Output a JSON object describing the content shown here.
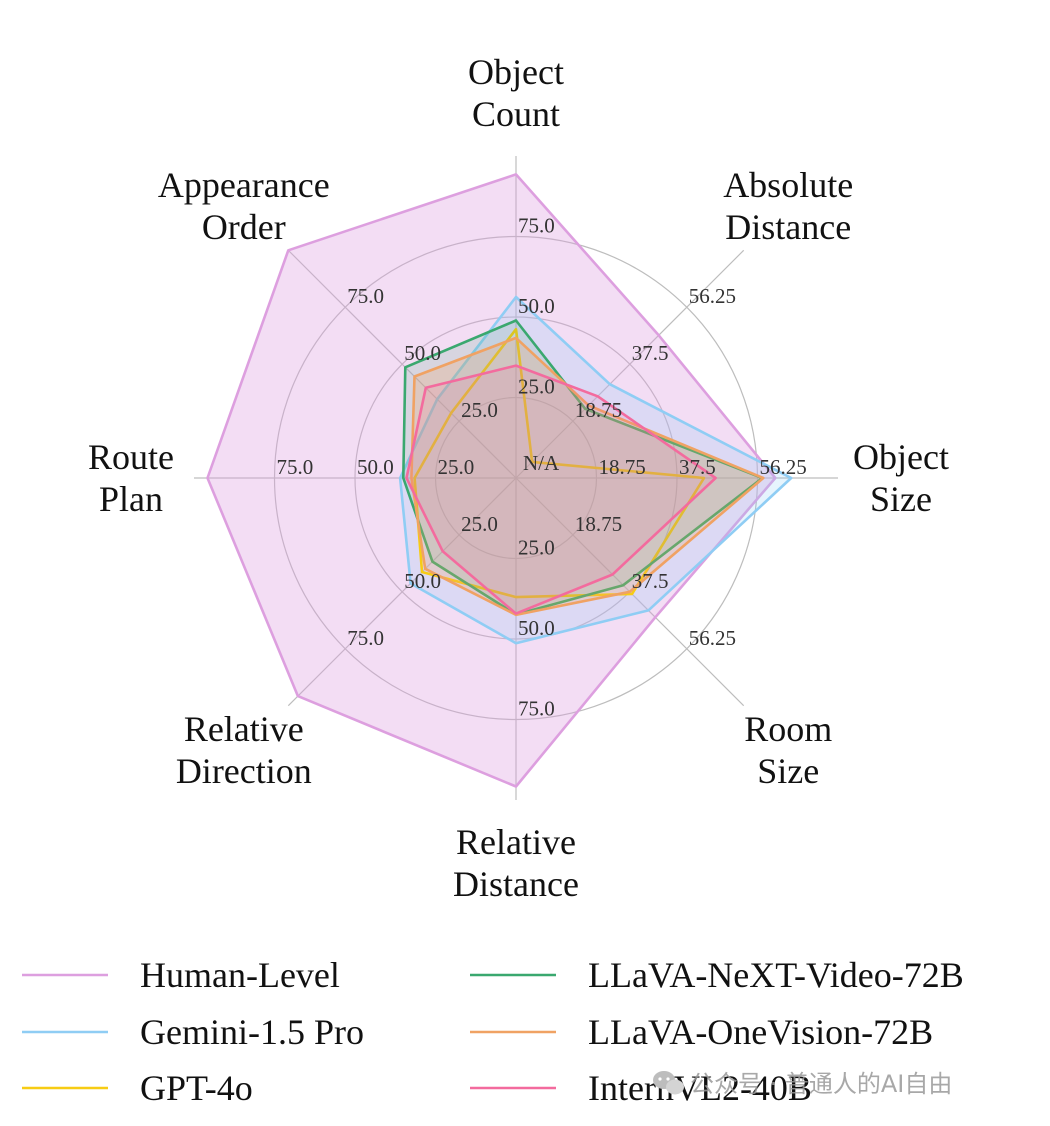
{
  "chart_data": {
    "type": "radar",
    "title": "",
    "axes": [
      {
        "name": "Object Count",
        "label_lines": [
          "Object",
          "Count"
        ],
        "ticks": [
          "25.0",
          "50.0",
          "75.0"
        ],
        "max": 100
      },
      {
        "name": "Absolute Distance",
        "label_lines": [
          "Absolute",
          "Distance"
        ],
        "ticks": [
          "18.75",
          "37.5",
          "56.25"
        ],
        "max": 75
      },
      {
        "name": "Object Size",
        "label_lines": [
          "Object",
          "Size"
        ],
        "ticks": [
          "18.75",
          "37.5",
          "56.25"
        ],
        "max": 75
      },
      {
        "name": "Room Size",
        "label_lines": [
          "Room",
          "Size"
        ],
        "ticks": [
          "18.75",
          "37.5",
          "56.25"
        ],
        "max": 75
      },
      {
        "name": "Relative Distance",
        "label_lines": [
          "Relative",
          "Distance"
        ],
        "ticks": [
          "25.0",
          "50.0",
          "75.0"
        ],
        "max": 100
      },
      {
        "name": "Relative Direction",
        "label_lines": [
          "Relative",
          "Direction"
        ],
        "ticks": [
          "25.0",
          "50.0",
          "75.0"
        ],
        "max": 100
      },
      {
        "name": "Route Plan",
        "label_lines": [
          "Route",
          "Plan"
        ],
        "ticks": [
          "25.0",
          "50.0",
          "75.0"
        ],
        "max": 100
      },
      {
        "name": "Appearance Order",
        "label_lines": [
          "Appearance",
          "Order"
        ],
        "ticks": [
          "25.0",
          "50.0",
          "75.0"
        ],
        "max": 100
      }
    ],
    "center_label": "N/A",
    "series": [
      {
        "name": "Human-Level",
        "color": "#dd9fdf",
        "fill_opacity": 0.35,
        "values": [
          94.3,
          47.0,
          60.4,
          45.9,
          95.8,
          95.8,
          95.8,
          100.0
        ]
      },
      {
        "name": "Gemini-1.5 Pro",
        "color": "#8fcdf4",
        "fill_opacity": 0.22,
        "values": [
          56.2,
          30.9,
          64.1,
          43.6,
          51.3,
          46.3,
          36.0,
          34.6
        ]
      },
      {
        "name": "GPT-4o",
        "color": "#f7cc14",
        "fill_opacity": 0.0,
        "values": [
          46.2,
          5.3,
          43.8,
          38.2,
          37.0,
          41.3,
          31.5,
          28.5
        ]
      },
      {
        "name": "LLaVA-NeXT-Video-72B",
        "color": "#3aa86f",
        "fill_opacity": 0.15,
        "values": [
          48.9,
          22.8,
          57.4,
          35.3,
          42.4,
          36.7,
          35.0,
          48.6
        ]
      },
      {
        "name": "LLaVA-OneVision-72B",
        "color": "#f0a263",
        "fill_opacity": 0.25,
        "values": [
          43.5,
          23.9,
          57.6,
          37.5,
          42.5,
          39.9,
          32.5,
          44.6
        ]
      },
      {
        "name": "InternVL2-40B",
        "color": "#f36b9e",
        "fill_opacity": 0.15,
        "values": [
          34.9,
          26.9,
          46.5,
          31.8,
          42.1,
          32.2,
          34.0,
          39.6
        ]
      }
    ],
    "legend": {
      "position": "bottom",
      "columns": 2
    }
  },
  "watermark": {
    "text": "公众号 · 普通人的AI自由",
    "icon": "wechat-icon"
  }
}
